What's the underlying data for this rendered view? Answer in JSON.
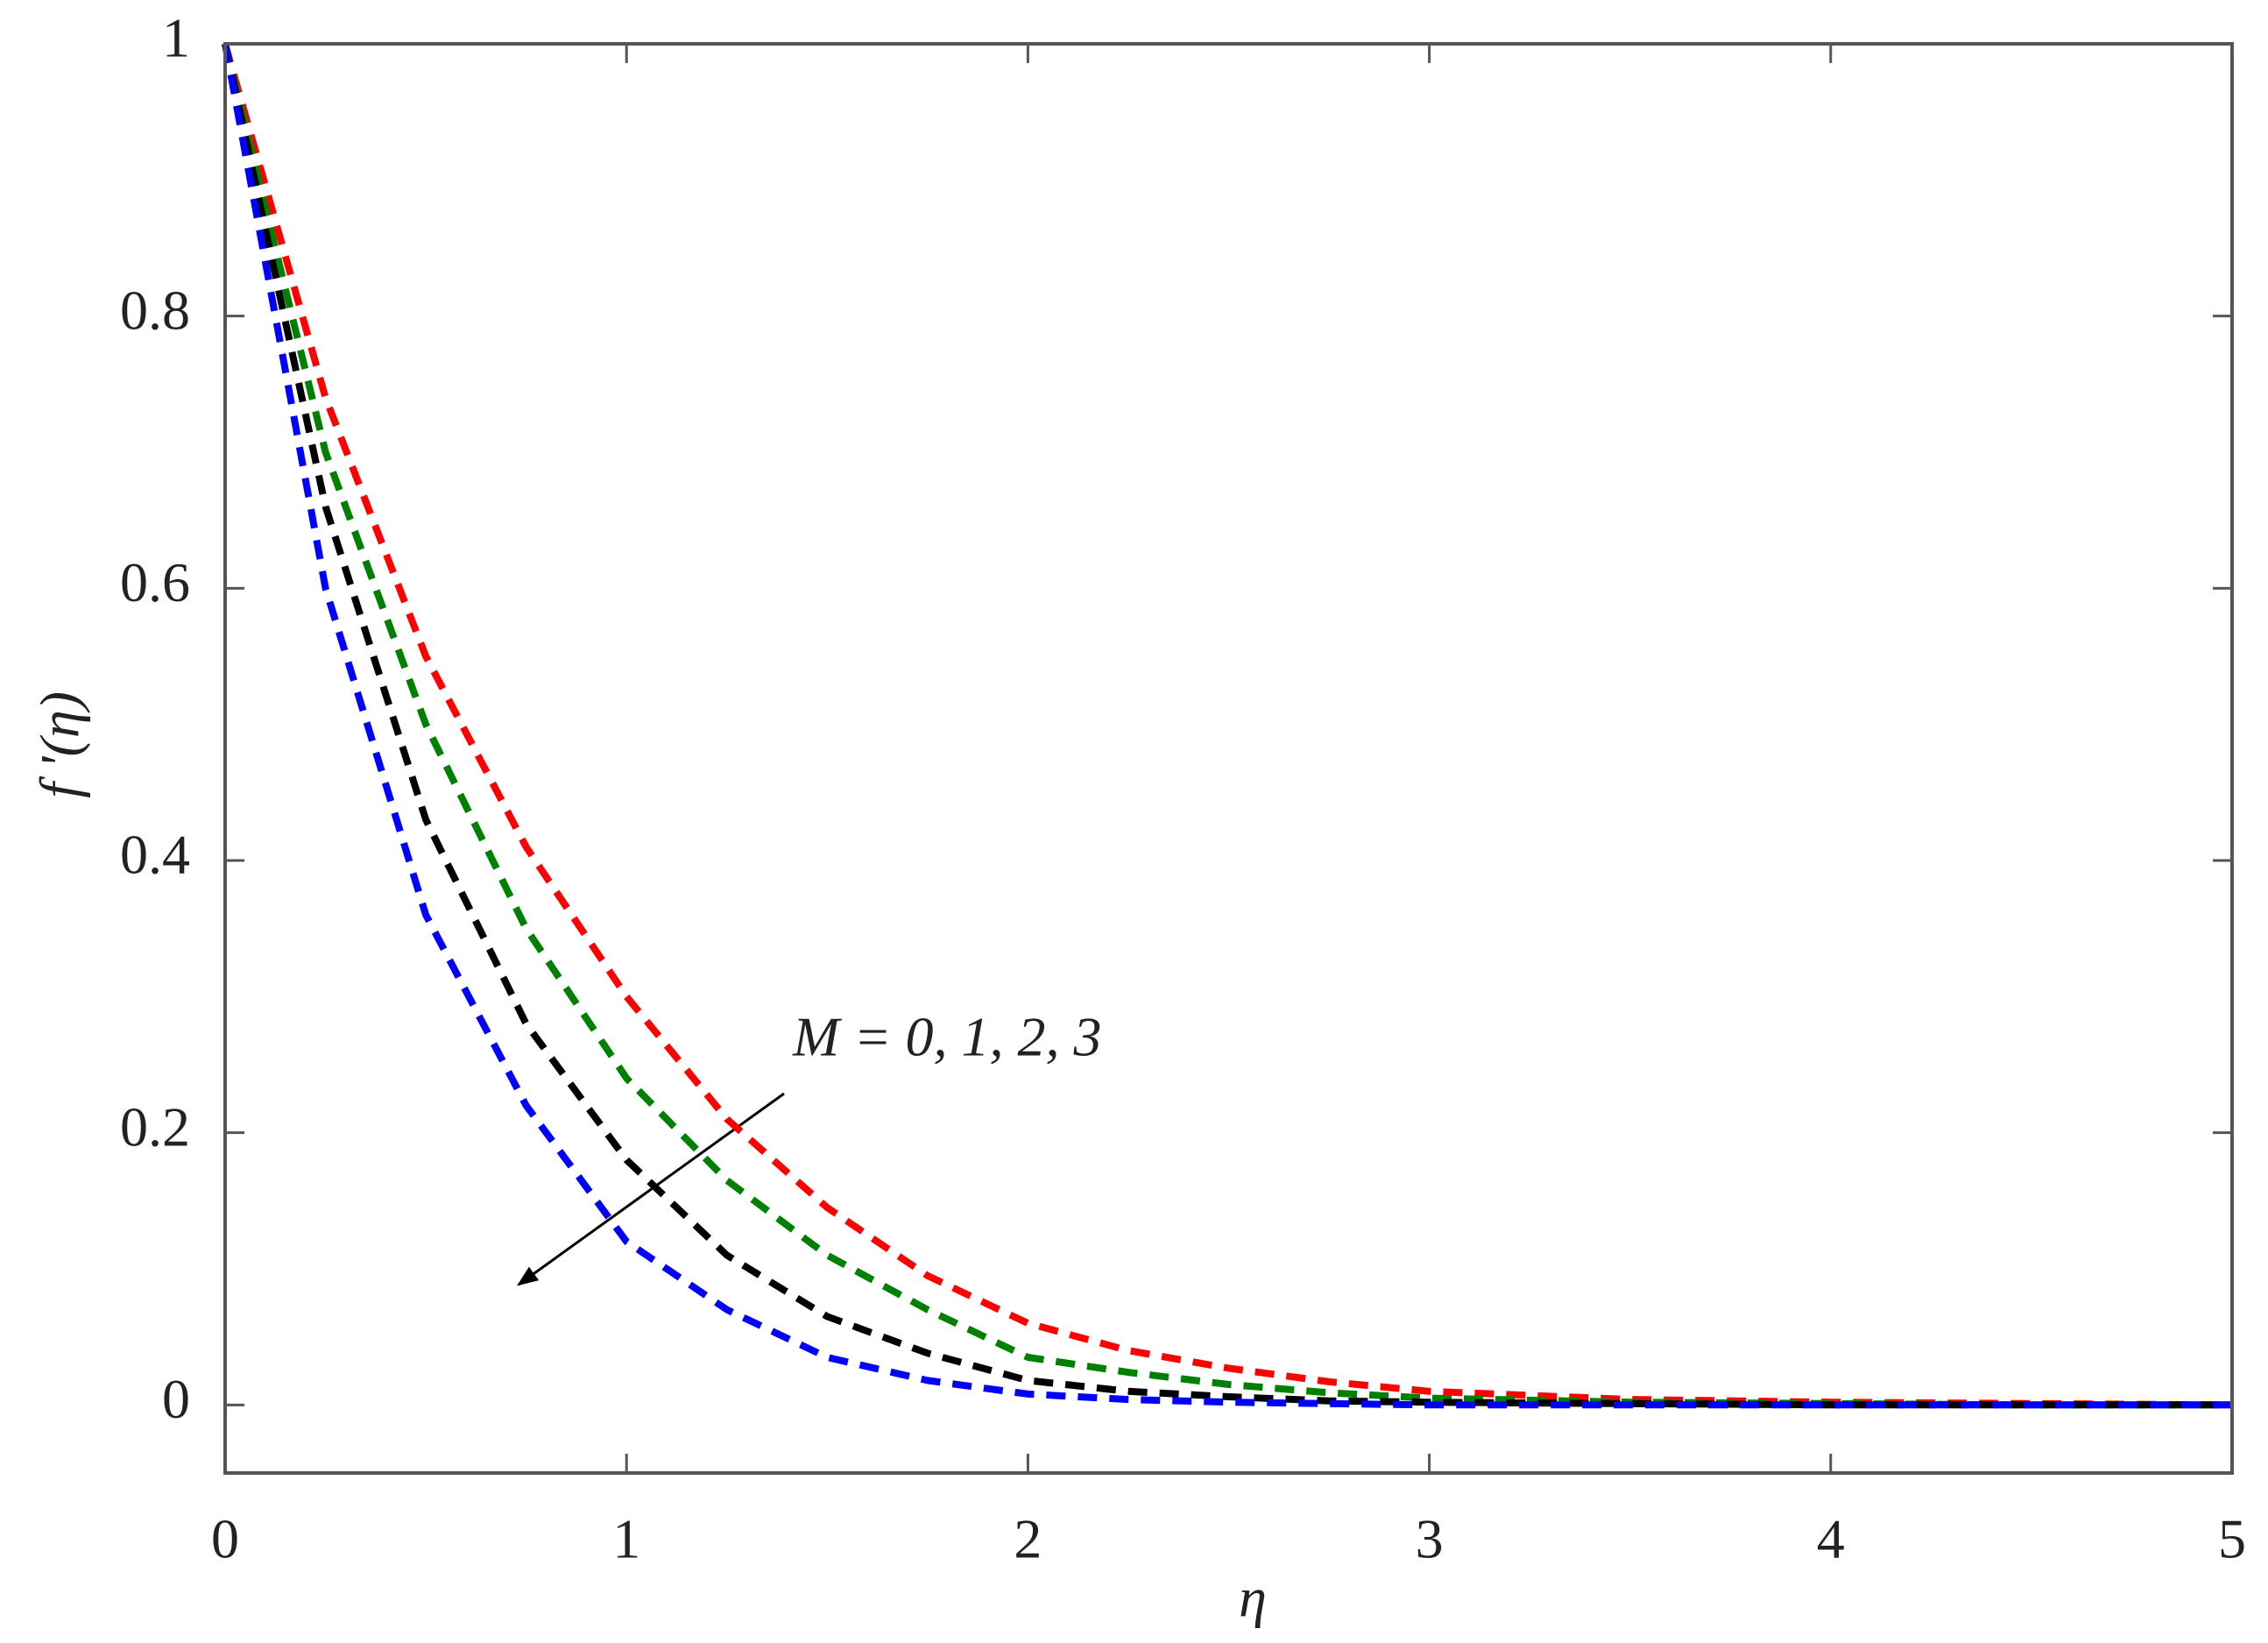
{
  "chart_data": {
    "type": "line",
    "xlabel": "η",
    "ylabel": "f '(η)",
    "annotation": "M = 0, 1, 2, 3",
    "x": [
      0,
      0.25,
      0.5,
      0.75,
      1,
      1.25,
      1.5,
      1.75,
      2,
      2.25,
      2.5,
      2.75,
      3,
      3.5,
      4,
      4.5,
      5
    ],
    "series": [
      {
        "color": "#ff0000",
        "values": [
          1,
          0.74,
          0.55,
          0.41,
          0.3,
          0.21,
          0.145,
          0.095,
          0.06,
          0.04,
          0.027,
          0.017,
          0.01,
          0.004,
          0.002,
          0.001,
          0
        ]
      },
      {
        "color": "#008000",
        "values": [
          1,
          0.7,
          0.5,
          0.35,
          0.24,
          0.165,
          0.11,
          0.07,
          0.035,
          0.024,
          0.015,
          0.009,
          0.005,
          0.002,
          0.001,
          0,
          0
        ]
      },
      {
        "color": "#000000",
        "values": [
          1,
          0.66,
          0.43,
          0.28,
          0.18,
          0.11,
          0.065,
          0.038,
          0.018,
          0.01,
          0.006,
          0.003,
          0.002,
          0.001,
          0,
          0,
          0
        ]
      },
      {
        "color": "#0000ff",
        "values": [
          1,
          0.6,
          0.36,
          0.22,
          0.12,
          0.07,
          0.035,
          0.018,
          0.008,
          0.004,
          0.002,
          0.001,
          0,
          0,
          0,
          0,
          0
        ]
      }
    ],
    "xlim": [
      0,
      5
    ],
    "xticks": [
      0,
      1,
      2,
      3,
      4,
      5
    ],
    "ylim": [
      -0.05,
      1
    ],
    "yticks": [
      0,
      0.2,
      0.4,
      0.6,
      0.8,
      1
    ],
    "grid": false
  }
}
